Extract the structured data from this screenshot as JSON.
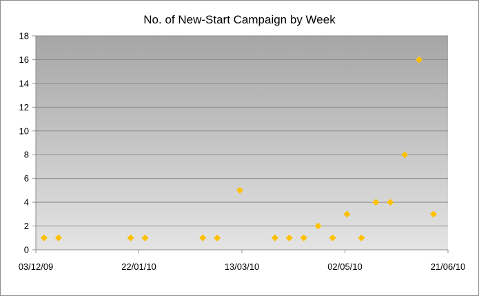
{
  "chart_data": {
    "type": "scatter",
    "title": "No. of New-Start Campaign by Week",
    "xlabel": "",
    "ylabel": "",
    "x_axis_type": "date",
    "x_date_format": "dd/mm/yy",
    "x_range": [
      "2009-12-03",
      "2010-06-21"
    ],
    "x_ticks": [
      {
        "date": "2009-12-03",
        "label": "03/12/09"
      },
      {
        "date": "2010-01-22",
        "label": "22/01/10"
      },
      {
        "date": "2010-03-13",
        "label": "13/03/10"
      },
      {
        "date": "2010-05-02",
        "label": "02/05/10"
      },
      {
        "date": "2010-06-21",
        "label": "21/06/10"
      }
    ],
    "ylim": [
      0,
      18
    ],
    "y_ticks": [
      "0",
      "2",
      "4",
      "6",
      "8",
      "10",
      "12",
      "14",
      "16",
      "18"
    ],
    "grid": "horizontal",
    "legend": "none",
    "marker": "diamond",
    "colors": {
      "marker": "#ffc000",
      "plot_bg_top": "#a6a6a6",
      "plot_bg_bottom": "#e4e4e4",
      "gridline": "#8a8a8a",
      "axis": "#8a8a8a"
    },
    "series": [
      {
        "points": [
          {
            "x": "2009-12-07",
            "y": 1
          },
          {
            "x": "2009-12-14",
            "y": 1
          },
          {
            "x": "2010-01-18",
            "y": 1
          },
          {
            "x": "2010-01-25",
            "y": 1
          },
          {
            "x": "2010-02-22",
            "y": 1
          },
          {
            "x": "2010-03-01",
            "y": 1
          },
          {
            "x": "2010-03-12",
            "y": 5
          },
          {
            "x": "2010-03-29",
            "y": 1
          },
          {
            "x": "2010-04-05",
            "y": 1
          },
          {
            "x": "2010-04-12",
            "y": 1
          },
          {
            "x": "2010-04-19",
            "y": 2
          },
          {
            "x": "2010-04-26",
            "y": 1
          },
          {
            "x": "2010-05-03",
            "y": 3
          },
          {
            "x": "2010-05-10",
            "y": 1
          },
          {
            "x": "2010-05-17",
            "y": 4
          },
          {
            "x": "2010-05-24",
            "y": 4
          },
          {
            "x": "2010-05-31",
            "y": 8
          },
          {
            "x": "2010-06-07",
            "y": 16
          },
          {
            "x": "2010-06-14",
            "y": 3
          }
        ]
      }
    ]
  }
}
